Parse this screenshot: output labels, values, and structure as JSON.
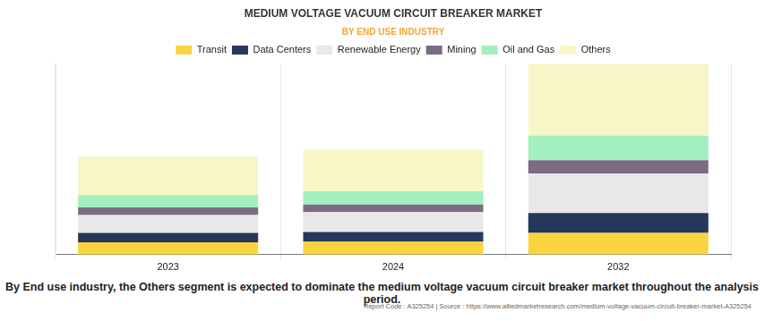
{
  "chart_data": {
    "type": "bar",
    "title": "MEDIUM VOLTAGE VACUUM CIRCUIT BREAKER MARKET",
    "subtitle": "BY END USE INDUSTRY",
    "categories": [
      "2023",
      "2024",
      "2032"
    ],
    "series": [
      {
        "name": "Transit",
        "color": "#fad43f",
        "values": [
          13,
          14,
          23
        ]
      },
      {
        "name": "Data Centers",
        "color": "#25385b",
        "values": [
          10,
          10,
          21
        ]
      },
      {
        "name": "Renewable Energy",
        "color": "#e8e8e8",
        "values": [
          19,
          21,
          42
        ]
      },
      {
        "name": "Mining",
        "color": "#7b6c82",
        "values": [
          8,
          8,
          14
        ]
      },
      {
        "name": "Oil and Gas",
        "color": "#a3efbf",
        "values": [
          13,
          14,
          26
        ]
      },
      {
        "name": "Others",
        "color": "#f7f6c6",
        "values": [
          41,
          44,
          76
        ]
      }
    ],
    "ylim": [
      0,
      202
    ],
    "stacked": true,
    "grid": true,
    "legend": "top",
    "tick_labels": "x",
    "annotations": [
      "By End use industry, the Others segment is expected to dominate the medium voltage vacuum circuit breaker market throughout the analysis period.",
      "Report Code : A325254  |  Source : https://www.alliedmarketresearch.com/medium-voltage-vacuum-circuit-breaker-market-A325254"
    ]
  }
}
